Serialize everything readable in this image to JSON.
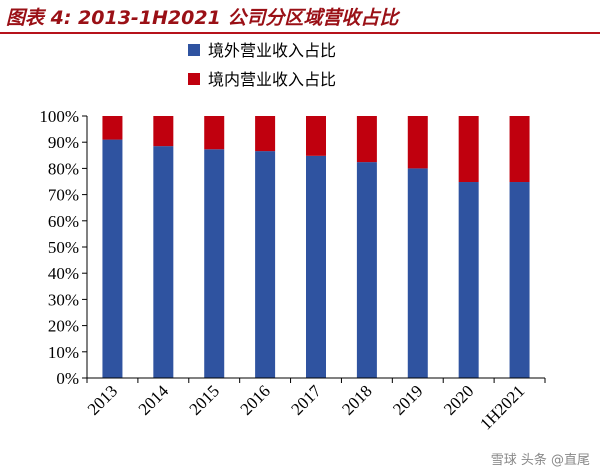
{
  "header": {
    "title": "图表 4:  2013-1H2021 公司分区域营收占比"
  },
  "watermark": "雪球  头条 @直尾",
  "colors": {
    "overseas": "#2f53a0",
    "domestic": "#c0000e",
    "title": "#9a1016",
    "axis": "#000000"
  },
  "chart_data": {
    "type": "bar",
    "stacked": true,
    "categories": [
      "2013",
      "2014",
      "2015",
      "2016",
      "2017",
      "2018",
      "2019",
      "2020",
      "1H2021"
    ],
    "series": [
      {
        "name": "境外营业收入占比",
        "values": [
          91,
          88.5,
          87.3,
          86.6,
          84.8,
          82.4,
          80,
          74.8,
          74.8
        ],
        "color": "#2f53a0"
      },
      {
        "name": "境内营业收入占比",
        "values": [
          9,
          11.5,
          12.7,
          13.4,
          15.2,
          17.6,
          20,
          25.2,
          25.2
        ],
        "color": "#c0000e"
      }
    ],
    "ylim": [
      0,
      100
    ],
    "yticks": [
      "0%",
      "10%",
      "20%",
      "30%",
      "40%",
      "50%",
      "60%",
      "70%",
      "80%",
      "90%",
      "100%"
    ],
    "legend": "top",
    "grid": false,
    "title": "",
    "xlabel": "",
    "ylabel": ""
  }
}
